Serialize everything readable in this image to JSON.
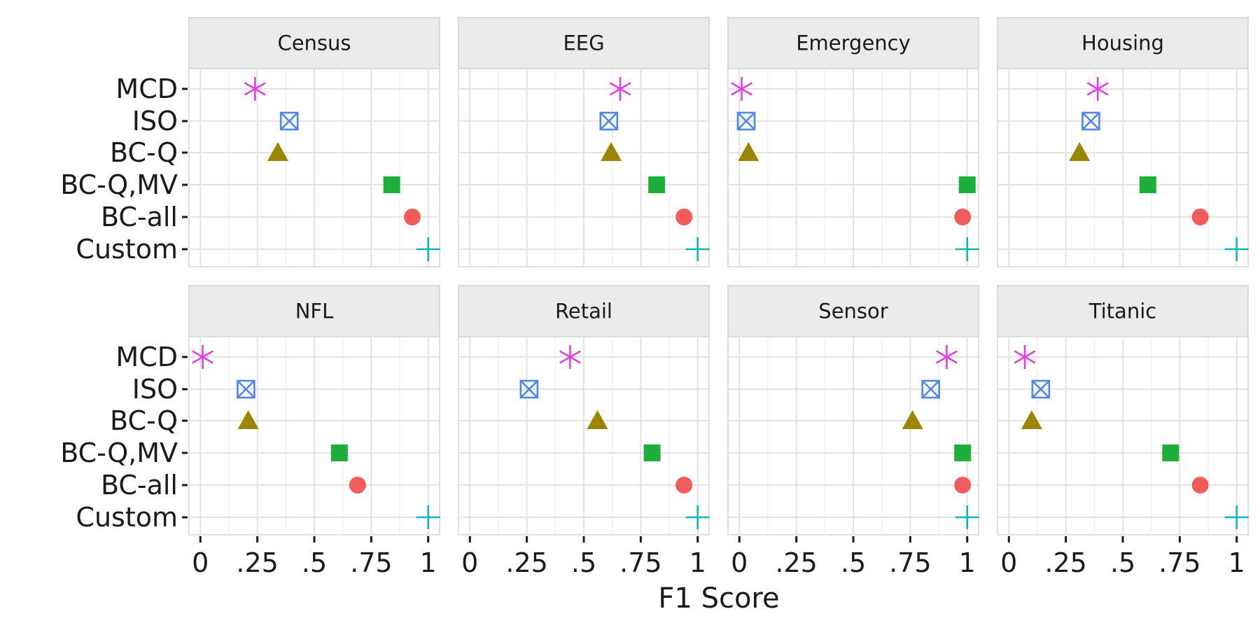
{
  "chart_data": {
    "type": "scatter",
    "xlabel": "F1 Score",
    "ylabel": "",
    "xlim": [
      -0.05,
      1.05
    ],
    "x_ticks": [
      0,
      0.25,
      0.5,
      0.75,
      1
    ],
    "x_tick_labels": [
      "0",
      ".25",
      ".5",
      ".75",
      "1"
    ],
    "categories": [
      "MCD",
      "ISO",
      "BC-Q",
      "BC-Q,MV",
      "BC-all",
      "Custom"
    ],
    "grid": true,
    "legend": "none",
    "series_styles": {
      "MCD": {
        "shape": "asterisk",
        "color": "#E040E0"
      },
      "ISO": {
        "shape": "square-cross",
        "color": "#4F86E8"
      },
      "BC-Q": {
        "shape": "triangle",
        "color": "#9A8600"
      },
      "BC-Q,MV": {
        "shape": "square",
        "color": "#1DAF3A"
      },
      "BC-all": {
        "shape": "circle",
        "color": "#F05C5C"
      },
      "Custom": {
        "shape": "plus",
        "color": "#12B5B5"
      }
    },
    "panels": [
      {
        "title": "Census",
        "values": {
          "MCD": 0.24,
          "ISO": 0.39,
          "BC-Q": 0.34,
          "BC-Q,MV": 0.84,
          "BC-all": 0.93,
          "Custom": 1.0
        }
      },
      {
        "title": "EEG",
        "values": {
          "MCD": 0.66,
          "ISO": 0.61,
          "BC-Q": 0.62,
          "BC-Q,MV": 0.82,
          "BC-all": 0.94,
          "Custom": 1.0
        }
      },
      {
        "title": "Emergency",
        "values": {
          "MCD": 0.01,
          "ISO": 0.03,
          "BC-Q": 0.04,
          "BC-Q,MV": 1.0,
          "BC-all": 0.98,
          "Custom": 1.0
        }
      },
      {
        "title": "Housing",
        "values": {
          "MCD": 0.39,
          "ISO": 0.36,
          "BC-Q": 0.31,
          "BC-Q,MV": 0.61,
          "BC-all": 0.84,
          "Custom": 1.0
        }
      },
      {
        "title": "NFL",
        "values": {
          "MCD": 0.01,
          "ISO": 0.2,
          "BC-Q": 0.21,
          "BC-Q,MV": 0.61,
          "BC-all": 0.69,
          "Custom": 1.0
        }
      },
      {
        "title": "Retail",
        "values": {
          "MCD": 0.44,
          "ISO": 0.26,
          "BC-Q": 0.56,
          "BC-Q,MV": 0.8,
          "BC-all": 0.94,
          "Custom": 1.0
        }
      },
      {
        "title": "Sensor",
        "values": {
          "MCD": 0.91,
          "ISO": 0.84,
          "BC-Q": 0.76,
          "BC-Q,MV": 0.98,
          "BC-all": 0.98,
          "Custom": 1.0
        }
      },
      {
        "title": "Titanic",
        "values": {
          "MCD": 0.07,
          "ISO": 0.14,
          "BC-Q": 0.1,
          "BC-Q,MV": 0.71,
          "BC-all": 0.84,
          "Custom": 1.0
        }
      }
    ]
  }
}
